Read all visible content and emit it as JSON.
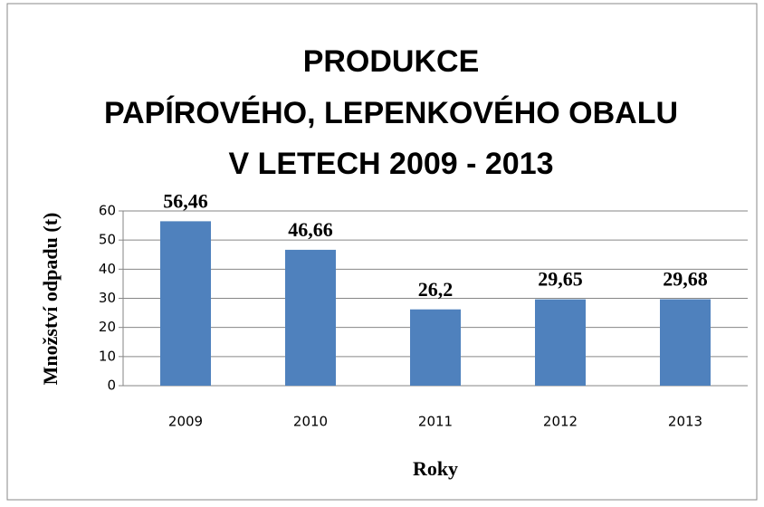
{
  "chart_data": {
    "type": "bar",
    "title": [
      "PRODUKCE",
      "PAPÍROVÉHO, LEPENKOVÉHO OBALU",
      "V LETECH 2009 - 2013"
    ],
    "x_label": "Roky",
    "y_label": "Množství odpadu (t)",
    "categories": [
      "2009",
      "2010",
      "2011",
      "2012",
      "2013"
    ],
    "values": [
      56.46,
      46.66,
      26.2,
      29.65,
      29.68
    ],
    "value_labels": [
      "56,46",
      "46,66",
      "26,2",
      "29,65",
      "29,68"
    ],
    "color": "#4f81bd",
    "ylim": [
      0,
      60
    ],
    "yticks": [
      0,
      10,
      20,
      30,
      40,
      50,
      60
    ],
    "grid": true
  }
}
